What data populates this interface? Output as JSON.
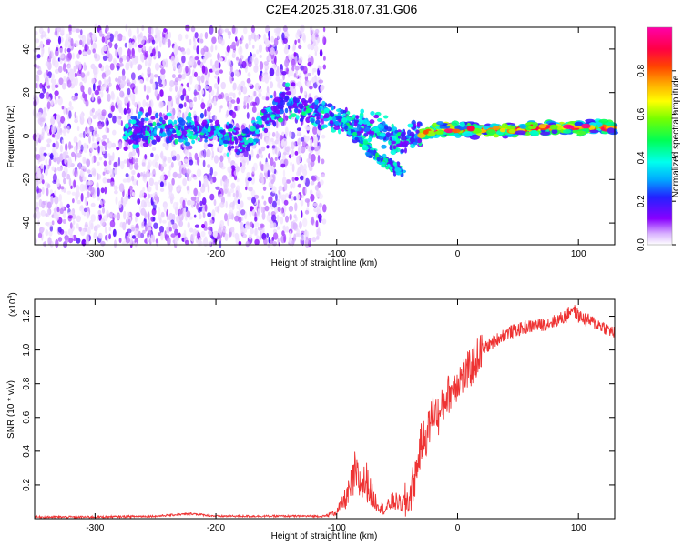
{
  "title": "C2E4.2025.318.07.31.G06",
  "colors": {
    "line": "#ee3333",
    "axis": "#000000",
    "background": "#ffffff"
  },
  "chart_data": [
    {
      "type": "heatmap",
      "name": "spectrogram",
      "xlabel": "Height of straight line (km)",
      "ylabel": "Frequency (Hz)",
      "xlim": [
        -350,
        130
      ],
      "ylim": [
        -50,
        50
      ],
      "xticks": [
        -300,
        -200,
        -100,
        0,
        100
      ],
      "yticks": [
        -40,
        -20,
        0,
        20,
        40
      ],
      "colorbar": {
        "label": "Normalized spectral amplitude",
        "range": [
          0,
          1
        ],
        "ticks": [
          "0.0",
          "0.2",
          "0.4",
          "0.6",
          "0.8"
        ],
        "tick_values": [
          0.0,
          0.2,
          0.4,
          0.6,
          0.8
        ]
      },
      "carrier_track": [
        {
          "x": -275,
          "y": 1
        },
        {
          "x": -250,
          "y": 2
        },
        {
          "x": -225,
          "y": 3
        },
        {
          "x": -200,
          "y": 2
        },
        {
          "x": -180,
          "y": -2
        },
        {
          "x": -170,
          "y": 1
        },
        {
          "x": -145,
          "y": 16
        },
        {
          "x": -130,
          "y": 13
        },
        {
          "x": -115,
          "y": 10
        },
        {
          "x": -100,
          "y": 7
        },
        {
          "x": -90,
          "y": 6
        },
        {
          "x": -80,
          "y": 5
        },
        {
          "x": -70,
          "y": 3
        },
        {
          "x": -60,
          "y": 2
        },
        {
          "x": -50,
          "y": -3
        },
        {
          "x": -40,
          "y": -1
        },
        {
          "x": -30,
          "y": 1
        },
        {
          "x": -20,
          "y": 2
        },
        {
          "x": -10,
          "y": 3
        },
        {
          "x": 0,
          "y": 3
        },
        {
          "x": 25,
          "y": 3
        },
        {
          "x": 50,
          "y": 3
        },
        {
          "x": 75,
          "y": 4
        },
        {
          "x": 100,
          "y": 4
        },
        {
          "x": 130,
          "y": 4
        }
      ],
      "secondary_track": [
        {
          "x": -95,
          "y": 6
        },
        {
          "x": -80,
          "y": -2
        },
        {
          "x": -70,
          "y": -8
        },
        {
          "x": -60,
          "y": -12
        },
        {
          "x": -45,
          "y": -17
        }
      ],
      "noise_region_km": [
        -350,
        -110
      ]
    },
    {
      "type": "line",
      "name": "snr",
      "xlabel": "Height of straight line (km)",
      "ylabel": "SNR (10 * v/v)",
      "y_multiplier": "(x10",
      "y_multiplier_exp": "4",
      "y_multiplier_close": ")",
      "xlim": [
        -350,
        130
      ],
      "ylim": [
        0,
        1.3
      ],
      "xticks": [
        -300,
        -200,
        -100,
        0,
        100
      ],
      "yticks": [
        "0.2",
        "0.4",
        "0.6",
        "0.8",
        "1.0",
        "1.2"
      ],
      "ytick_values": [
        0.2,
        0.4,
        0.6,
        0.8,
        1.0,
        1.2
      ],
      "series": [
        {
          "name": "SNR",
          "x": [
            -350,
            -300,
            -250,
            -220,
            -200,
            -150,
            -110,
            -100,
            -90,
            -85,
            -80,
            -75,
            -70,
            -65,
            -60,
            -55,
            -50,
            -45,
            -40,
            -35,
            -30,
            -25,
            -20,
            -15,
            -10,
            -5,
            0,
            10,
            20,
            30,
            40,
            50,
            60,
            70,
            80,
            90,
            95,
            100,
            110,
            120,
            130
          ],
          "values": [
            0.01,
            0.01,
            0.015,
            0.03,
            0.015,
            0.015,
            0.015,
            0.04,
            0.15,
            0.26,
            0.2,
            0.22,
            0.12,
            0.08,
            0.05,
            0.1,
            0.1,
            0.08,
            0.12,
            0.25,
            0.45,
            0.5,
            0.65,
            0.6,
            0.72,
            0.76,
            0.82,
            0.88,
            1.0,
            1.05,
            1.1,
            1.12,
            1.14,
            1.15,
            1.17,
            1.2,
            1.25,
            1.2,
            1.17,
            1.14,
            1.1
          ]
        }
      ]
    }
  ]
}
